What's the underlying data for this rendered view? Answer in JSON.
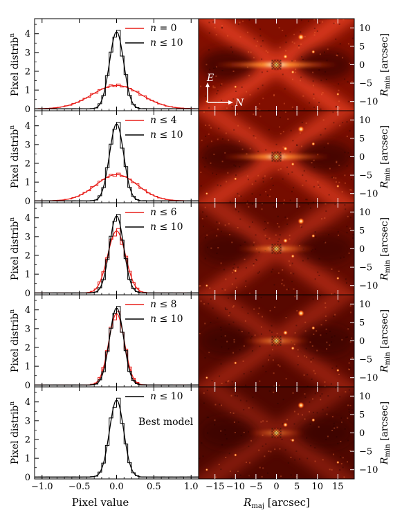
{
  "chart_data": [
    {
      "type": "line",
      "panel_index": 0,
      "ylabel": "Pixel distrib",
      "ylabel_sup": "n",
      "xlim": [
        -1.1,
        1.1
      ],
      "ylim": [
        -0.1,
        4.8
      ],
      "xticks": [
        "-1.0",
        "-0.5",
        "0.0",
        "0.5",
        "1.0"
      ],
      "yticks": [
        "0",
        "1",
        "2",
        "3",
        "4"
      ],
      "legend_position": "top-right",
      "series": [
        {
          "name": "n = 0",
          "legend": {
            "prefix": "",
            "var": "n",
            "op": "=",
            "value": "0"
          },
          "color": "#e8201c",
          "sigma": 0.33,
          "peak": 1.25
        },
        {
          "name": "n ≤ 10",
          "legend": {
            "prefix": "",
            "var": "n",
            "op": "≤",
            "value": "10"
          },
          "color": "#000000",
          "sigma": 0.095,
          "peak": 4.1
        }
      ]
    },
    {
      "type": "line",
      "panel_index": 1,
      "ylabel": "Pixel distrib",
      "ylabel_sup": "n",
      "xlim": [
        -1.1,
        1.1
      ],
      "ylim": [
        -0.1,
        4.8
      ],
      "xticks": [
        "-1.0",
        "-0.5",
        "0.0",
        "0.5",
        "1.0"
      ],
      "yticks": [
        "0",
        "1",
        "2",
        "3",
        "4"
      ],
      "legend_position": "top-right",
      "series": [
        {
          "name": "n ≤ 4",
          "legend": {
            "prefix": "",
            "var": "n",
            "op": "≤",
            "value": "4"
          },
          "color": "#e8201c",
          "sigma": 0.28,
          "peak": 1.4
        },
        {
          "name": "n ≤ 10",
          "legend": {
            "prefix": "",
            "var": "n",
            "op": "≤",
            "value": "10"
          },
          "color": "#000000",
          "sigma": 0.095,
          "peak": 4.1
        }
      ]
    },
    {
      "type": "line",
      "panel_index": 2,
      "ylabel": "Pixel distrib",
      "ylabel_sup": "n",
      "xlim": [
        -1.1,
        1.1
      ],
      "ylim": [
        -0.1,
        4.8
      ],
      "xticks": [
        "-1.0",
        "-0.5",
        "0.0",
        "0.5",
        "1.0"
      ],
      "yticks": [
        "0",
        "1",
        "2",
        "3",
        "4"
      ],
      "legend_position": "top-right",
      "series": [
        {
          "name": "n ≤ 6",
          "legend": {
            "prefix": "",
            "var": "n",
            "op": "≤",
            "value": "6"
          },
          "color": "#e8201c",
          "sigma": 0.12,
          "peak": 3.3
        },
        {
          "name": "n ≤ 10",
          "legend": {
            "prefix": "",
            "var": "n",
            "op": "≤",
            "value": "10"
          },
          "color": "#000000",
          "sigma": 0.095,
          "peak": 4.1
        }
      ]
    },
    {
      "type": "line",
      "panel_index": 3,
      "ylabel": "Pixel distrib",
      "ylabel_sup": "n",
      "xlim": [
        -1.1,
        1.1
      ],
      "ylim": [
        -0.1,
        4.8
      ],
      "xticks": [
        "-1.0",
        "-0.5",
        "0.0",
        "0.5",
        "1.0"
      ],
      "yticks": [
        "0",
        "1",
        "2",
        "3",
        "4"
      ],
      "legend_position": "top-right",
      "series": [
        {
          "name": "n ≤ 8",
          "legend": {
            "prefix": "",
            "var": "n",
            "op": "≤",
            "value": "8"
          },
          "color": "#e8201c",
          "sigma": 0.105,
          "peak": 3.8
        },
        {
          "name": "n ≤ 10",
          "legend": {
            "prefix": "",
            "var": "n",
            "op": "≤",
            "value": "10"
          },
          "color": "#000000",
          "sigma": 0.095,
          "peak": 4.1
        }
      ]
    },
    {
      "type": "line",
      "panel_index": 4,
      "ylabel": "Pixel distrib",
      "ylabel_sup": "n",
      "xlabel": "Pixel value",
      "xlim": [
        -1.1,
        1.1
      ],
      "ylim": [
        -0.1,
        4.8
      ],
      "xticks": [
        "-1.0",
        "-0.5",
        "0.0",
        "0.5",
        "1.0"
      ],
      "yticks": [
        "0",
        "1",
        "2",
        "3",
        "4"
      ],
      "legend_position": "top-right",
      "annotation": "Best model",
      "series": [
        {
          "name": "n ≤ 10",
          "legend": {
            "prefix": "",
            "var": "n",
            "op": "≤",
            "value": "10"
          },
          "color": "#000000",
          "sigma": 0.095,
          "peak": 4.1
        }
      ]
    },
    {
      "type": "heatmap",
      "description_id": "residual-maps",
      "colormap": "black-red-yellow-white",
      "xlabel": "R",
      "xlabel_sub": "maj",
      "xlabel_unit": "[arcsec]",
      "ylabel": "R",
      "ylabel_sub": "min",
      "ylabel_unit": "[arcsec]",
      "xlim": [
        -19,
        19
      ],
      "ylim": [
        -12.5,
        12.5
      ],
      "xticks": [
        "-15",
        "-10",
        "-5",
        "0",
        "5",
        "10",
        "15"
      ],
      "yticks": [
        "10",
        "5",
        "0",
        "-5",
        "-10"
      ],
      "compass": {
        "east": "E",
        "north": "N"
      },
      "panels": [
        {
          "strength": 1.0
        },
        {
          "strength": 0.8
        },
        {
          "strength": 0.45
        },
        {
          "strength": 0.3
        },
        {
          "strength": 0.15
        }
      ]
    }
  ]
}
